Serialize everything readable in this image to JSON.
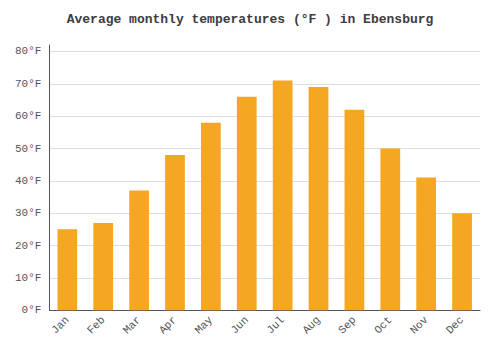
{
  "chart_data": {
    "type": "bar",
    "title": "Average monthly temperatures (°F ) in Ebensburg",
    "categories": [
      "Jan",
      "Feb",
      "Mar",
      "Apr",
      "May",
      "Jun",
      "Jul",
      "Aug",
      "Sep",
      "Oct",
      "Nov",
      "Dec"
    ],
    "values": [
      25,
      27,
      37,
      48,
      58,
      66,
      71,
      69,
      62,
      50,
      41,
      30
    ],
    "color": "#F5A623",
    "ylim": [
      0,
      82
    ],
    "yticks": [
      {
        "value": 0,
        "label": "0°F"
      },
      {
        "value": 10,
        "label": "10°F"
      },
      {
        "value": 20,
        "label": "20°F"
      },
      {
        "value": 30,
        "label": "30°F"
      },
      {
        "value": 40,
        "label": "40°F"
      },
      {
        "value": 50,
        "label": "50°F"
      },
      {
        "value": 60,
        "label": "60°F"
      },
      {
        "value": 70,
        "label": "70°F"
      },
      {
        "value": 80,
        "label": "80°F"
      }
    ],
    "grid": true
  }
}
